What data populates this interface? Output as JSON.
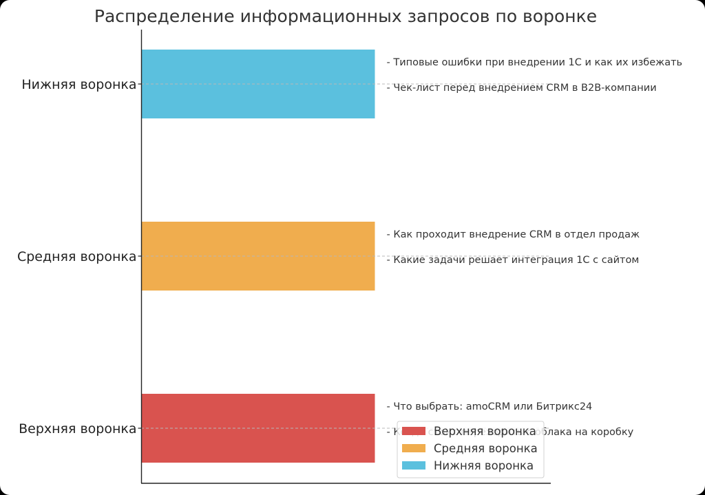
{
  "chart_data": {
    "type": "bar",
    "orientation": "horizontal",
    "title": "Распределение информационных запросов по воронке",
    "xlabel": "",
    "ylabel": "",
    "categories": [
      "Верхняя воронка",
      "Средняя воронка",
      "Нижняя воронка"
    ],
    "values": [
      1,
      1,
      1
    ],
    "xlim": [
      0,
      1.75
    ],
    "colors": [
      "#d9534f",
      "#f0ad4e",
      "#5bc0de"
    ],
    "annotations": [
      [
        "- Что выбрать: amoCRM или Битрикс24",
        "- Когда стоит переходить с облака на коробку"
      ],
      [
        "- Как проходит внедрение CRM в отдел продаж",
        "- Какие задачи решает интеграция 1С с сайтом"
      ],
      [
        "- Типовые ошибки при внедрении 1С и как их избежать",
        "- Чек-лист перед внедрением CRM в B2B-компании"
      ]
    ],
    "legend": {
      "position": "lower-right",
      "entries": [
        "Верхняя воронка",
        "Средняя воронка",
        "Нижняя воронка"
      ]
    },
    "grid": false
  }
}
